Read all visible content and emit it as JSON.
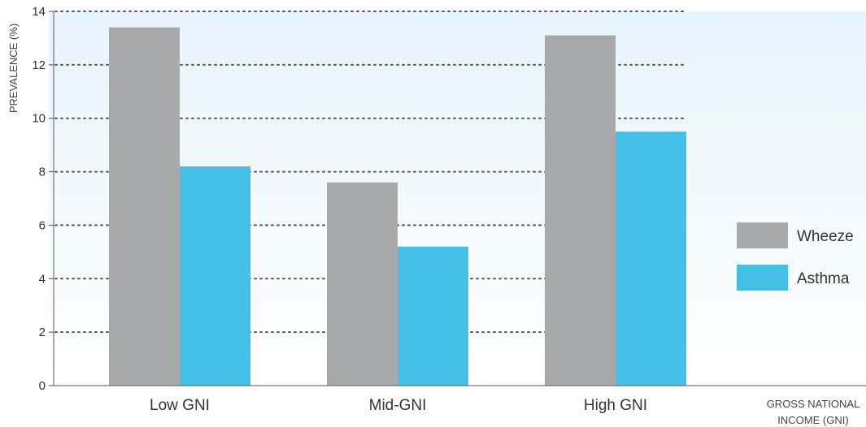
{
  "chart_data": {
    "type": "bar",
    "title": "",
    "categories": [
      "Low GNI",
      "Mid-GNI",
      "High GNI"
    ],
    "series": [
      {
        "name": "Wheeze",
        "color": "#a8a9ab",
        "values": [
          13.4,
          7.6,
          13.1
        ]
      },
      {
        "name": "Asthma",
        "color": "#44bfe8",
        "values": [
          8.2,
          5.2,
          9.5
        ]
      }
    ],
    "ylabel": "PREVALENCE (%)",
    "xlabel_lines": [
      "GROSS NATIONAL",
      "INCOME (GNI)"
    ],
    "ylim": [
      0,
      14
    ],
    "yticks": [
      "0",
      "2",
      "4",
      "6",
      "8",
      "10",
      "12",
      "14"
    ],
    "grid": true,
    "legend_position": "right"
  }
}
